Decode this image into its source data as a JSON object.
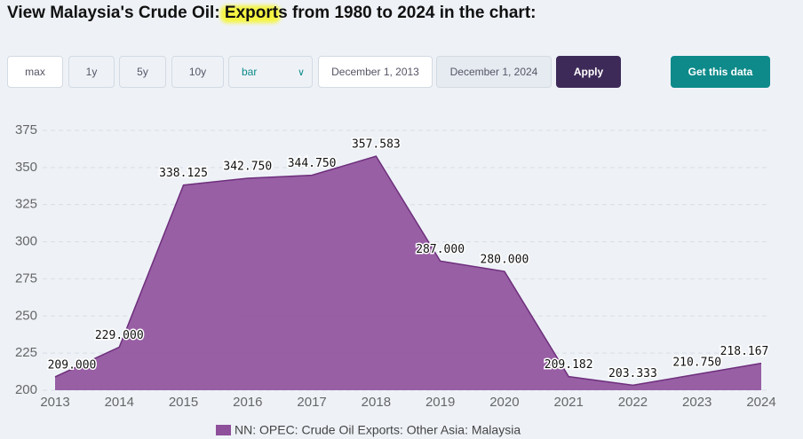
{
  "header": {
    "title": "View Malaysia's Crude Oil: Exports from 1980 to 2024 in the chart:"
  },
  "controls": {
    "ranges": [
      "max",
      "1y",
      "5y",
      "10y"
    ],
    "chart_type": "bar",
    "start_date": "December 1, 2013",
    "end_date": "December 1, 2024",
    "apply": "Apply",
    "get_data": "Get this data"
  },
  "chart_data": {
    "type": "area",
    "categories": [
      "2013",
      "2014",
      "2015",
      "2016",
      "2017",
      "2018",
      "2019",
      "2020",
      "2021",
      "2022",
      "2023",
      "2024"
    ],
    "series": [
      {
        "name": "NN: OPEC: Crude Oil Exports: Other Asia: Malaysia",
        "color": "#8e4f9b",
        "values": [
          209,
          229,
          338.125,
          342.75,
          344.75,
          357.583,
          287,
          280,
          209.182,
          203.333,
          210.75,
          218.167
        ],
        "value_labels": [
          "209.000",
          "229.000",
          "338.125",
          "342.750",
          "344.750",
          "357.583",
          "287.000",
          "280.000",
          "209.182",
          "203.333",
          "210.750",
          "218.167"
        ]
      }
    ],
    "ylim": [
      200,
      375
    ],
    "yticks": [
      200,
      225,
      250,
      275,
      300,
      325,
      350,
      375
    ],
    "grid": true,
    "legend": "bottom"
  }
}
